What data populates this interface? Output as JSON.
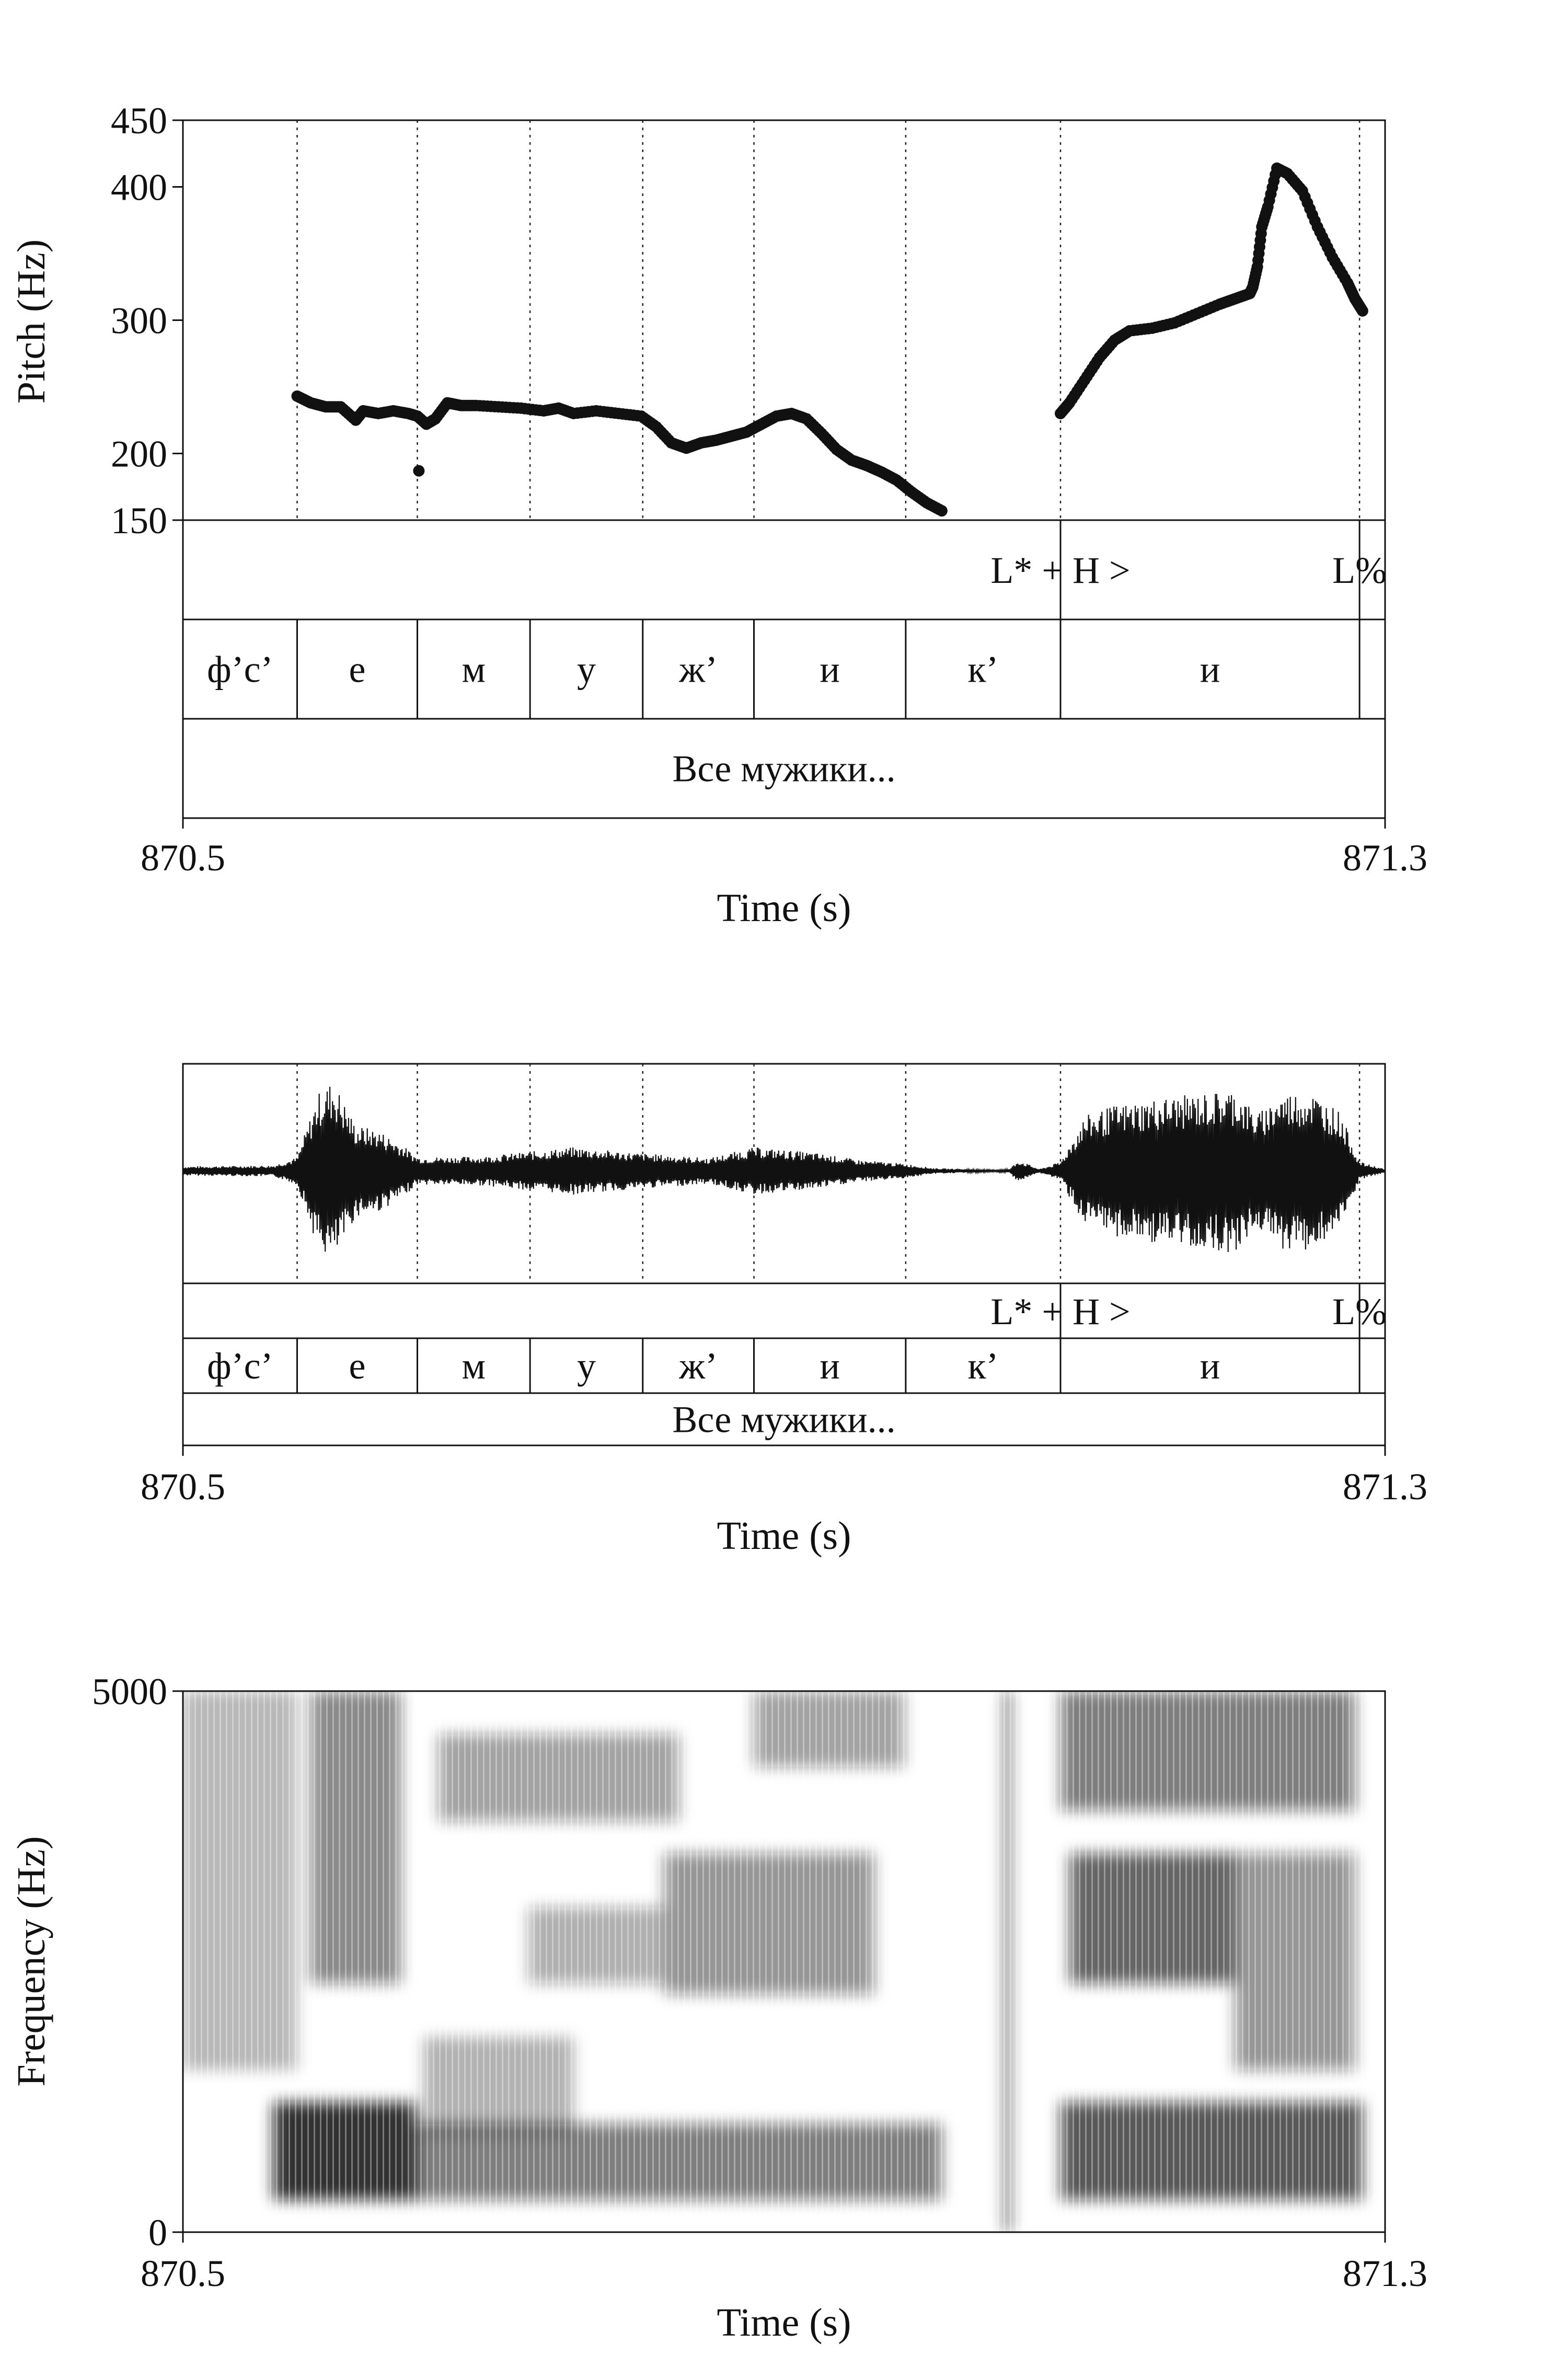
{
  "chart_data": [
    {
      "type": "line",
      "panel": "pitch",
      "ylabel": "Pitch (Hz)",
      "xlabel": "Time (s)",
      "xlim": [
        870.5,
        871.3
      ],
      "ylim": [
        150,
        450
      ],
      "ylim_labels": [
        "870.5",
        "871.3"
      ],
      "yticks": [
        150,
        200,
        300,
        400,
        450
      ],
      "boundaries": [
        870.576,
        870.656,
        870.731,
        870.806,
        870.88,
        870.981,
        871.084,
        871.283
      ],
      "tones": [
        {
          "t": 871.084,
          "text": "L* + H >"
        },
        {
          "t": 871.283,
          "text": "L%"
        }
      ],
      "segments": [
        {
          "start": 870.5,
          "end": 870.576,
          "text": "ф’с’"
        },
        {
          "start": 870.576,
          "end": 870.656,
          "text": "е"
        },
        {
          "start": 870.656,
          "end": 870.731,
          "text": "м"
        },
        {
          "start": 870.731,
          "end": 870.806,
          "text": "у"
        },
        {
          "start": 870.806,
          "end": 870.88,
          "text": "ж’"
        },
        {
          "start": 870.88,
          "end": 870.981,
          "text": "и"
        },
        {
          "start": 870.981,
          "end": 871.084,
          "text": "к’"
        },
        {
          "start": 871.084,
          "end": 871.283,
          "text": "и"
        },
        {
          "start": 871.283,
          "end": 871.3,
          "text": ""
        }
      ],
      "words": [
        {
          "start": 870.5,
          "end": 871.3,
          "text": "Все мужики..."
        }
      ],
      "series": [
        {
          "x": [
            870.576,
            870.585,
            870.595,
            870.605,
            870.615,
            870.62,
            870.63,
            870.64,
            870.65,
            870.656,
            870.662,
            870.668,
            870.676,
            870.685,
            870.695,
            870.71,
            870.725,
            870.74,
            870.75,
            870.76,
            870.775,
            870.79,
            870.805,
            870.815,
            870.825,
            870.835,
            870.845,
            870.855,
            870.865,
            870.875,
            870.885,
            870.895,
            870.905,
            870.915,
            870.925,
            870.935,
            870.945,
            870.955,
            870.965,
            870.975,
            870.985,
            870.995,
            871.005
          ],
          "y": [
            243,
            238,
            235,
            235,
            225,
            232,
            230,
            232,
            230,
            228,
            222,
            226,
            238,
            236,
            236,
            235,
            234,
            232,
            234,
            230,
            232,
            230,
            228,
            220,
            208,
            204,
            208,
            210,
            213,
            216,
            222,
            228,
            230,
            226,
            215,
            203,
            195,
            191,
            186,
            180,
            171,
            163,
            157
          ]
        },
        {
          "x": [
            870.657
          ],
          "y": [
            187
          ]
        },
        {
          "x": [
            871.084,
            871.09,
            871.1,
            871.11,
            871.12,
            871.13,
            871.145,
            871.16,
            871.175,
            871.19,
            871.2,
            871.21,
            871.212,
            871.215,
            871.218,
            871.222,
            871.228,
            871.235,
            871.245,
            871.255,
            871.265,
            871.275,
            871.28,
            871.285
          ],
          "y": [
            230,
            238,
            255,
            272,
            285,
            292,
            294,
            298,
            305,
            312,
            316,
            320,
            325,
            340,
            370,
            385,
            414,
            410,
            397,
            370,
            347,
            328,
            316,
            307
          ]
        }
      ]
    },
    {
      "type": "line",
      "panel": "waveform",
      "xlabel": "Time (s)",
      "xlim": [
        870.5,
        871.3
      ],
      "xlim_labels": [
        "870.5",
        "871.3"
      ],
      "amplitude_envelope": {
        "t": [
          870.5,
          870.56,
          870.576,
          870.59,
          870.6,
          870.615,
          870.63,
          870.645,
          870.656,
          870.7,
          870.76,
          870.8,
          870.85,
          870.88,
          870.92,
          870.95,
          870.98,
          871.0,
          871.04,
          871.05,
          871.056,
          871.07,
          871.084,
          871.1,
          871.12,
          871.15,
          871.18,
          871.2,
          871.215,
          871.23,
          871.25,
          871.27,
          871.283,
          871.3
        ],
        "amp": [
          0.05,
          0.06,
          0.15,
          0.85,
          1.0,
          0.5,
          0.45,
          0.3,
          0.15,
          0.16,
          0.26,
          0.2,
          0.14,
          0.26,
          0.2,
          0.12,
          0.08,
          0.03,
          0.01,
          0.02,
          0.12,
          0.02,
          0.1,
          0.6,
          0.72,
          0.8,
          0.85,
          0.9,
          0.62,
          0.85,
          0.88,
          0.65,
          0.1,
          0.02
        ]
      },
      "tones": [
        "L* + H >",
        "L%"
      ],
      "segments": [
        "ф’с’",
        "е",
        "м",
        "у",
        "ж’",
        "и",
        "к’",
        "и",
        ""
      ],
      "words": [
        "Все мужики..."
      ]
    },
    {
      "type": "heatmap",
      "panel": "spectrogram",
      "ylabel": "Frequency (Hz)",
      "xlabel": "Time (s)",
      "xlim": [
        870.5,
        871.3
      ],
      "ylim": [
        0,
        5000
      ],
      "xlim_labels": [
        "870.5",
        "871.3"
      ],
      "ylim_labels": [
        "0",
        "5000"
      ]
    }
  ]
}
